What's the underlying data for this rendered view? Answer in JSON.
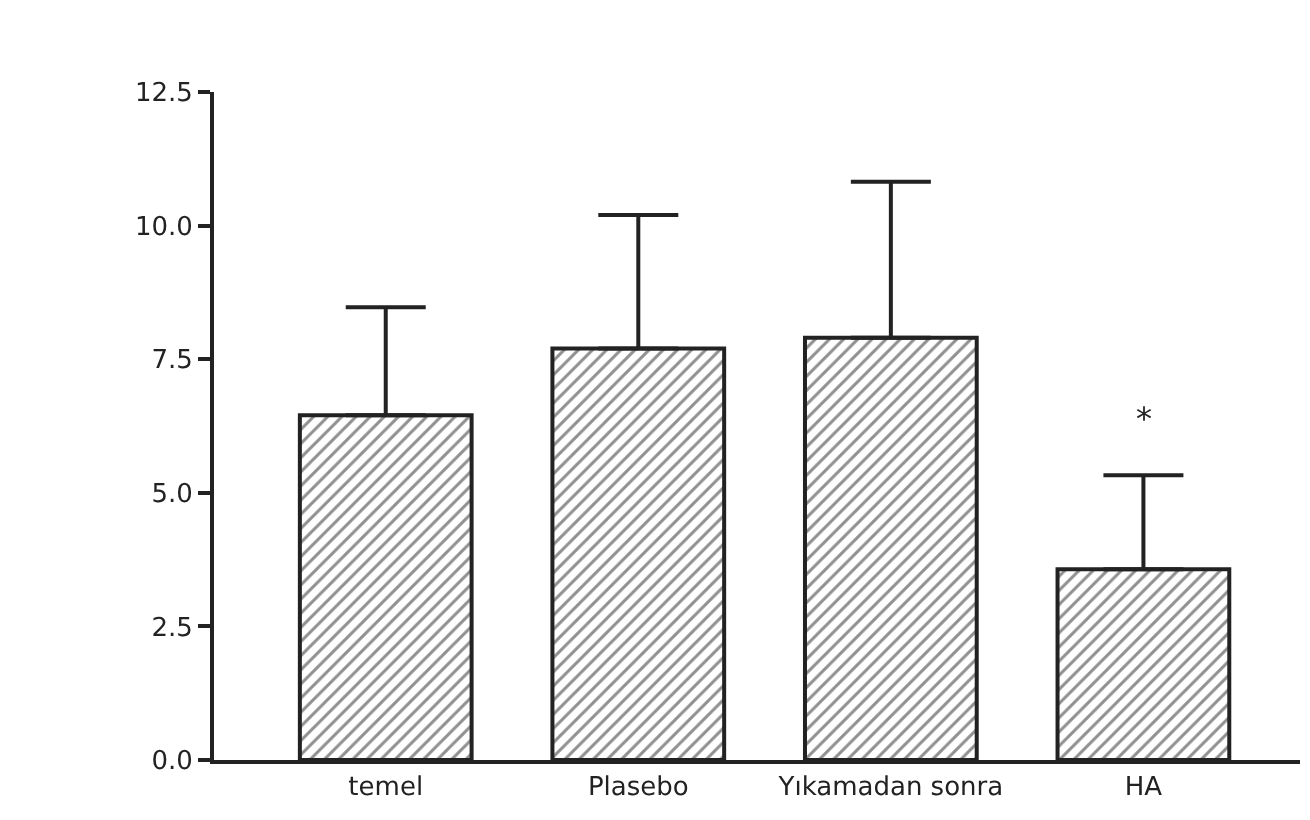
{
  "chart_data": {
    "type": "bar",
    "categories": [
      "temel",
      "Plasebo",
      "Yıkamadan sonra",
      "HA"
    ],
    "values": [
      6.45,
      7.7,
      7.9,
      3.57
    ],
    "errors": [
      [
        6.45,
        8.47
      ],
      [
        7.7,
        10.2
      ],
      [
        7.9,
        10.82
      ],
      [
        3.57,
        5.33
      ]
    ],
    "color": "#222222",
    "ylim": [
      0,
      12.5
    ],
    "yticks": [
      {
        "value": 0,
        "label": "0.0"
      },
      {
        "value": 2.5,
        "label": "2.5"
      },
      {
        "value": 5,
        "label": "5.0"
      },
      {
        "value": 7.5,
        "label": "7.5"
      },
      {
        "value": 10,
        "label": "10.0"
      },
      {
        "value": 12.5,
        "label": "12.5"
      }
    ],
    "annotations": [
      "*"
    ]
  }
}
